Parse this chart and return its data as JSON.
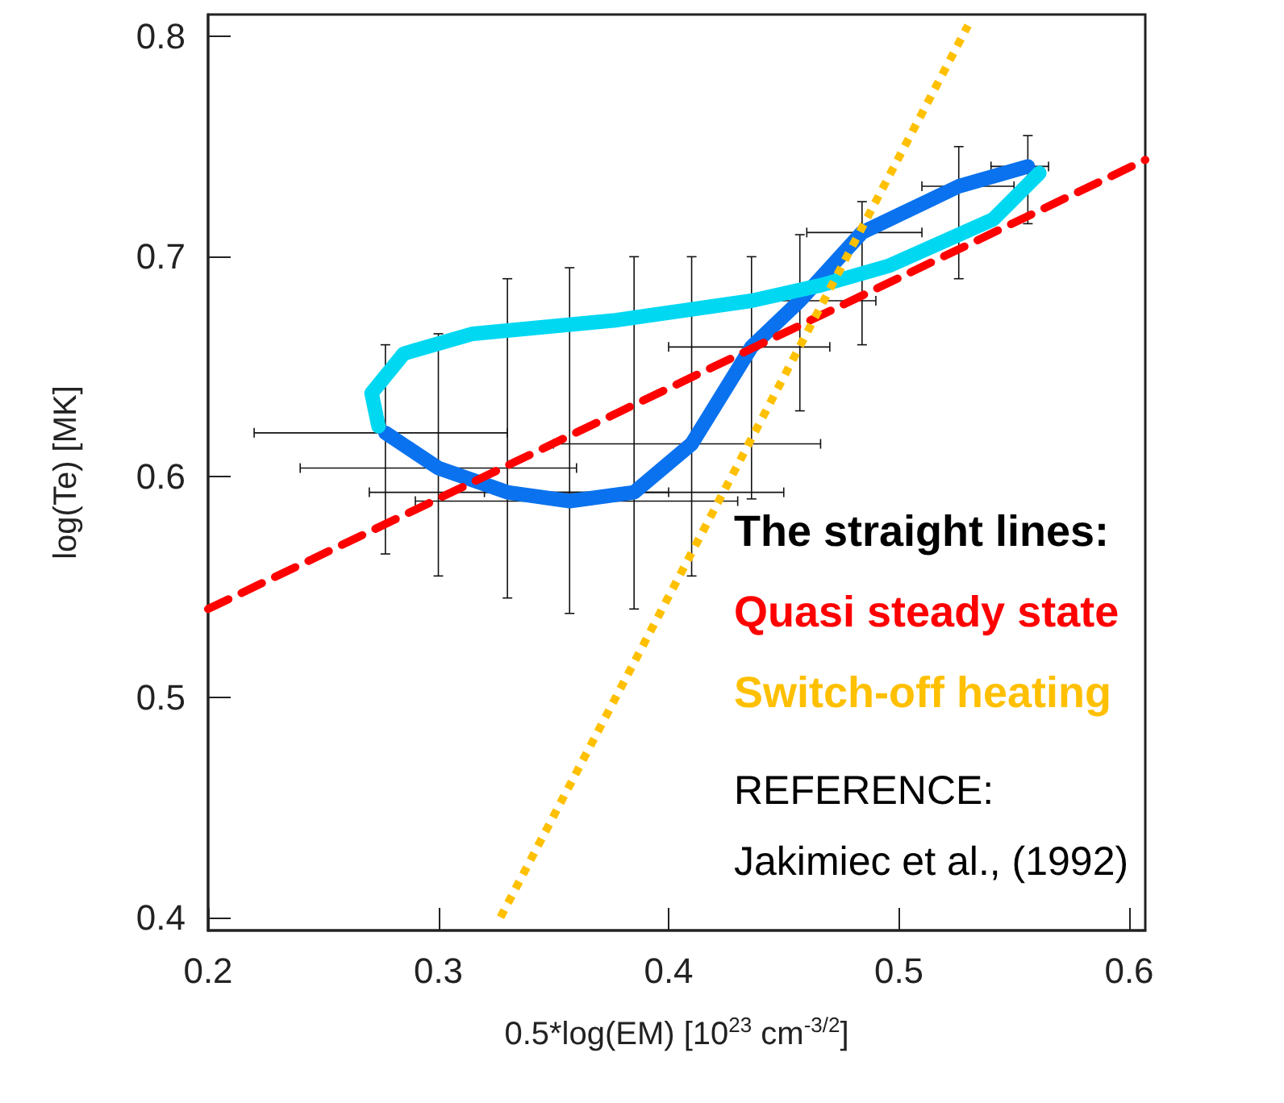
{
  "chart_data": {
    "type": "line",
    "xlabel": "0.5*log(EM) [10$^{23}$ cm$^{-3/2}$]",
    "ylabel": "log(Te) [MK]",
    "legend_title": "The straight lines:",
    "legend": "right",
    "xlim": [
      0.2,
      0.607
    ],
    "ylim": [
      0.394,
      0.81
    ],
    "xticks": [
      0.2,
      0.3,
      0.4,
      0.5,
      0.6
    ],
    "yticks": [
      0.4,
      0.5,
      0.6,
      0.7,
      0.8
    ],
    "grid": false,
    "marker": "none",
    "annotations": [
      "REFERENCE:",
      "Jakimiec et al., (1992)"
    ],
    "series": [
      {
        "color": "#0a72ee",
        "x": [
          0.277,
          0.3,
          0.33,
          0.357,
          0.385,
          0.41,
          0.436,
          0.457,
          0.484,
          0.526,
          0.556
        ],
        "values": [
          0.62,
          0.604,
          0.593,
          0.589,
          0.593,
          0.615,
          0.659,
          0.68,
          0.711,
          0.732,
          0.741
        ],
        "errors": [
          [
            0.565,
            0.66
          ],
          [
            0.555,
            0.665
          ],
          [
            0.545,
            0.69
          ],
          [
            0.538,
            0.695
          ],
          [
            0.54,
            0.7
          ],
          [
            0.555,
            0.7
          ],
          [
            0.59,
            0.7
          ],
          [
            0.63,
            0.71
          ],
          [
            0.66,
            0.725
          ],
          [
            0.69,
            0.75
          ],
          [
            0.715,
            0.755
          ]
        ],
        "xerrors": [
          [
            0.22,
            0.33
          ],
          [
            0.24,
            0.36
          ],
          [
            0.27,
            0.4
          ],
          [
            0.29,
            0.43
          ],
          [
            0.32,
            0.45
          ],
          [
            0.35,
            0.466
          ],
          [
            0.4,
            0.47
          ],
          [
            0.43,
            0.49
          ],
          [
            0.46,
            0.51
          ],
          [
            0.51,
            0.55
          ],
          [
            0.54,
            0.565
          ]
        ]
      },
      {
        "color": "#00d8f2",
        "x": [
          0.561,
          0.541,
          0.496,
          0.466,
          0.436,
          0.376,
          0.315,
          0.285,
          0.271,
          0.274
        ],
        "values": [
          0.738,
          0.717,
          0.696,
          0.687,
          0.68,
          0.671,
          0.665,
          0.656,
          0.638,
          0.623
        ]
      },
      {
        "name": "Quasi steady state",
        "color": "#ff0000",
        "line_style": "dashed",
        "x": [
          0.2,
          0.607
        ],
        "values": [
          0.54,
          0.744
        ]
      },
      {
        "name": "Switch-off heating",
        "color": "#ffc000",
        "line_style": "dotted",
        "x": [
          0.327,
          0.53
        ],
        "values": [
          0.4,
          0.805
        ]
      }
    ]
  }
}
